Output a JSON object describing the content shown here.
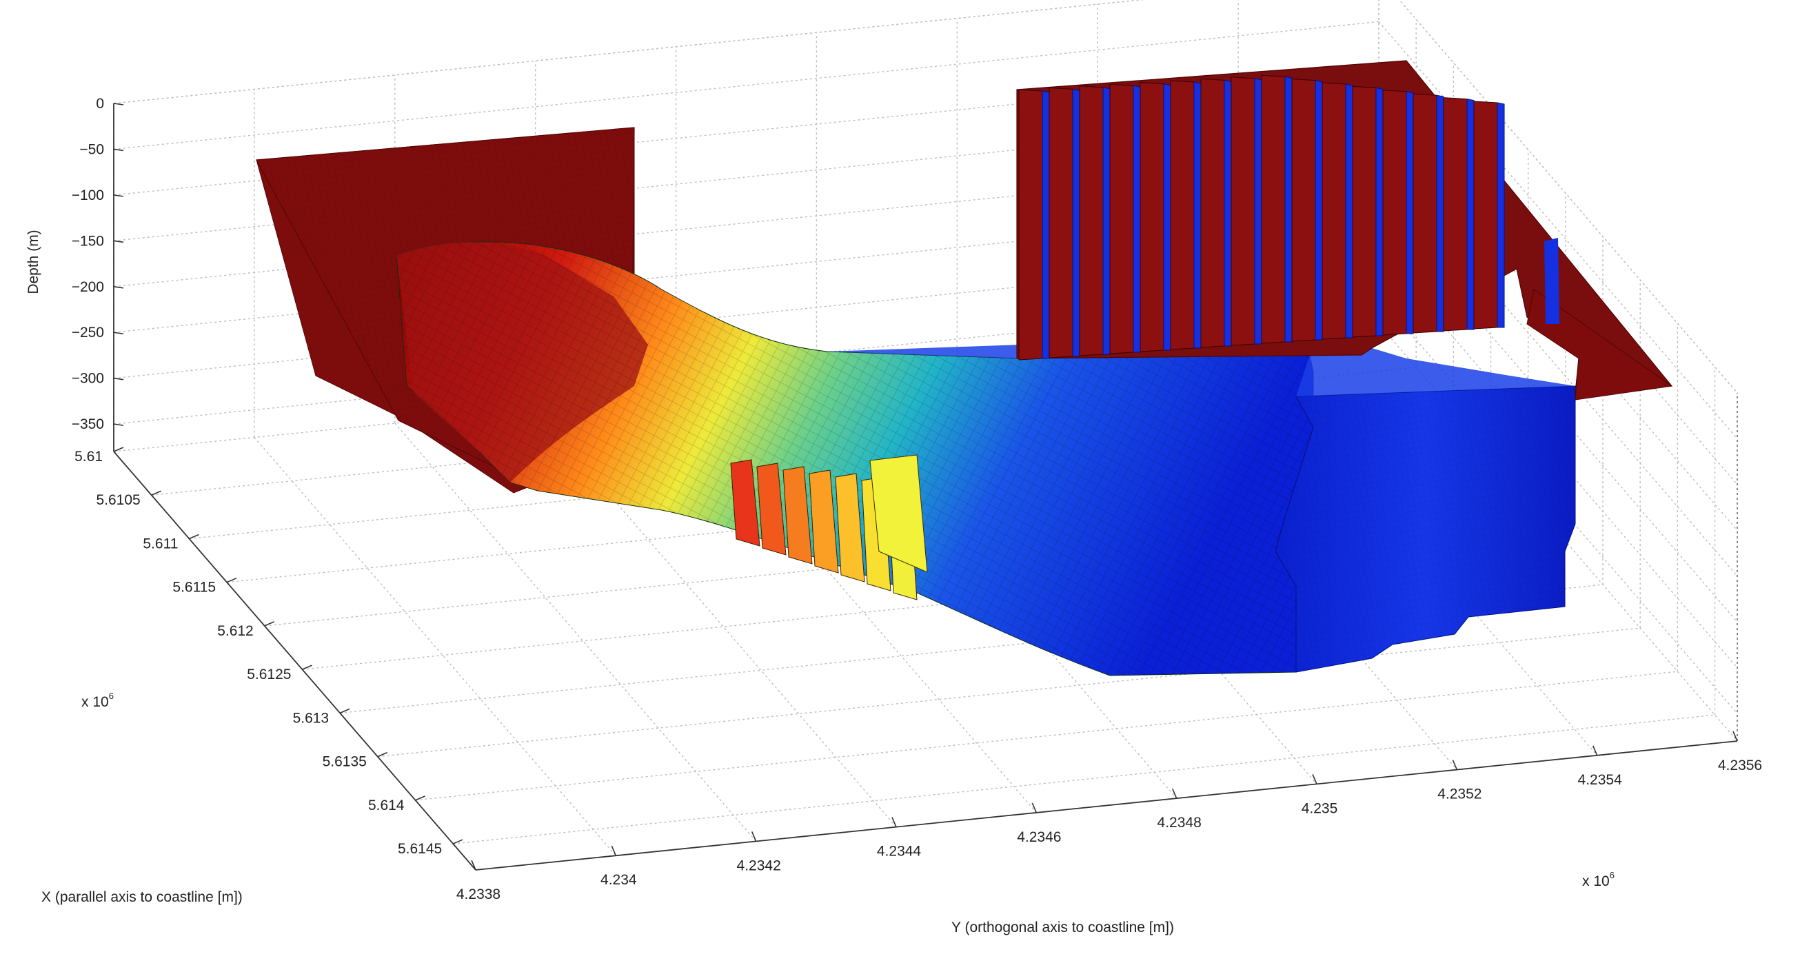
{
  "chart_data": {
    "type": "surface",
    "title": "",
    "zlabel": "Depth (m)",
    "xlabel": "X (parallel axis to coastline [m])",
    "ylabel": "Y (orthogonal axis to coastline [m])",
    "z_ticks": [
      "0",
      "−50",
      "−100",
      "−150",
      "−200",
      "−250",
      "−300",
      "−350"
    ],
    "z_values": [
      0,
      -50,
      -100,
      -150,
      -200,
      -250,
      -300,
      -350
    ],
    "zlim": [
      -380,
      0
    ],
    "x_ticks": [
      "5.61",
      "5.6105",
      "5.611",
      "5.6115",
      "5.612",
      "5.6125",
      "5.613",
      "5.6135",
      "5.614",
      "5.6145"
    ],
    "x_values": [
      5.61,
      5.6105,
      5.611,
      5.6115,
      5.612,
      5.6125,
      5.613,
      5.6135,
      5.614,
      5.6145
    ],
    "x_multiplier": "x 10",
    "x_multiplier_exp": "6",
    "y_ticks": [
      "4.2338",
      "4.234",
      "4.2342",
      "4.2344",
      "4.2346",
      "4.2348",
      "4.235",
      "4.2352",
      "4.2354",
      "4.2356"
    ],
    "y_values": [
      4.2338,
      4.234,
      4.2342,
      4.2344,
      4.2346,
      4.2348,
      4.235,
      4.2352,
      4.2354,
      4.2356
    ],
    "y_multiplier": "x 10",
    "y_multiplier_exp": "6",
    "grid": true,
    "colormap": "jet",
    "colors": {
      "shallow": "#800000",
      "mid_warm": "#ffff33",
      "mid_cool": "#22bbaa",
      "deep": "#0a1fd6",
      "grid": "#bdbdbd",
      "axis": "#333333"
    }
  }
}
